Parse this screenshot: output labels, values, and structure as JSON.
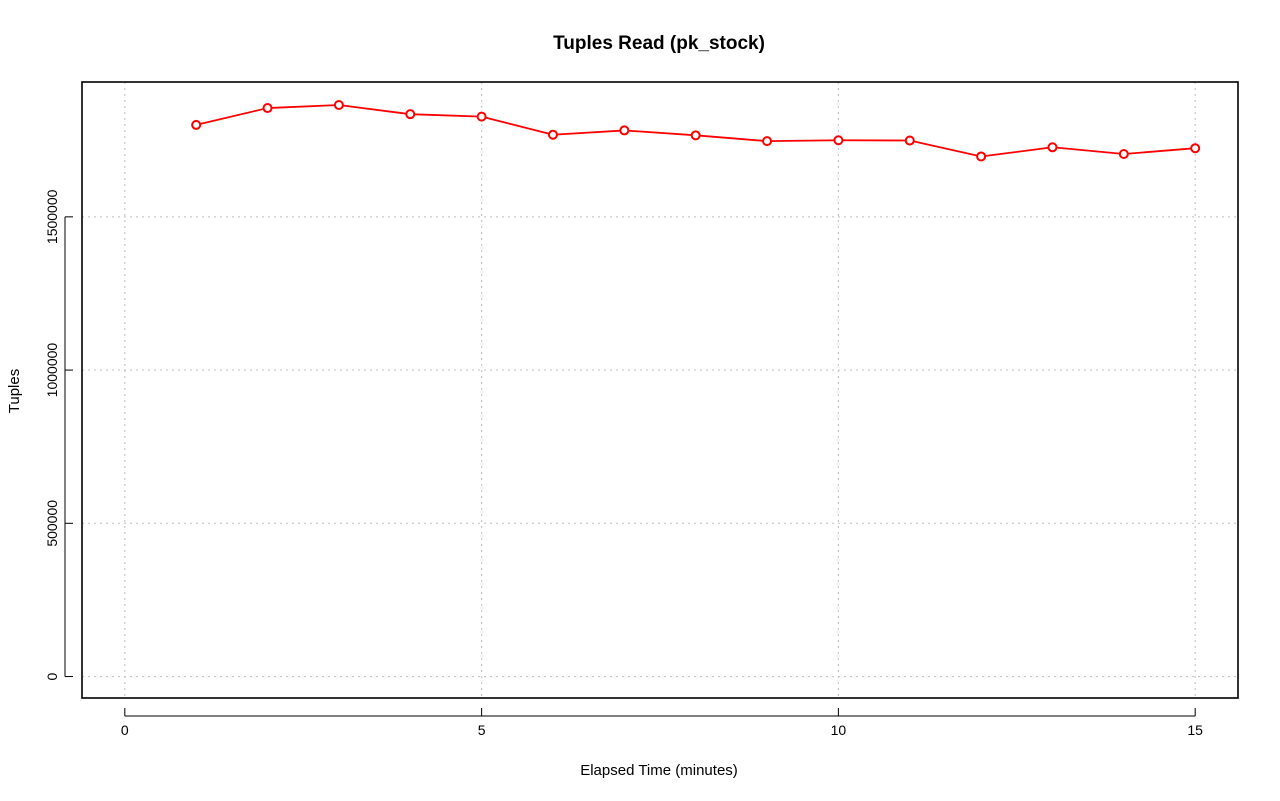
{
  "chart_data": {
    "type": "line",
    "title": "Tuples Read (pk_stock)",
    "xlabel": "Elapsed Time (minutes)",
    "ylabel": "Tuples",
    "xlim": [
      -0.6,
      15.6
    ],
    "ylim": [
      -70000,
      1940000
    ],
    "x_ticks": [
      0,
      5,
      10,
      15
    ],
    "x_tick_labels": [
      "0",
      "5",
      "10",
      "15"
    ],
    "y_ticks": [
      0,
      500000,
      1000000,
      1500000
    ],
    "y_tick_labels": [
      "0",
      "500000",
      "1000000",
      "1500000"
    ],
    "grid": true,
    "grid_style": "dotted",
    "legend": false,
    "series": [
      {
        "color": "#ff0000",
        "marker": "open-circle",
        "x": [
          1,
          2,
          3,
          4,
          5,
          6,
          7,
          8,
          9,
          10,
          11,
          12,
          13,
          14,
          15
        ],
        "values": [
          1800000,
          1855000,
          1865000,
          1835000,
          1827000,
          1768000,
          1782000,
          1766000,
          1747000,
          1750000,
          1749000,
          1697000,
          1727000,
          1705000,
          1724000
        ]
      }
    ]
  }
}
